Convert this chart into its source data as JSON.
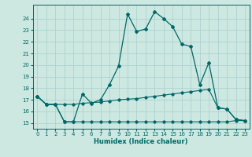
{
  "xlabel": "Humidex (Indice chaleur)",
  "background_color": "#cce8e0",
  "grid_color": "#aaced0",
  "line_color": "#006868",
  "x_values": [
    0,
    1,
    2,
    3,
    4,
    5,
    6,
    7,
    8,
    9,
    10,
    11,
    12,
    13,
    14,
    15,
    16,
    17,
    18,
    19,
    20,
    21,
    22,
    23
  ],
  "line_main_y": [
    17.3,
    16.6,
    16.6,
    15.1,
    15.1,
    17.5,
    16.7,
    17.0,
    18.3,
    19.9,
    24.4,
    22.9,
    23.1,
    24.6,
    24.0,
    23.3,
    21.8,
    21.6,
    18.3,
    20.2,
    16.3,
    16.2,
    15.3,
    15.2
  ],
  "line_mid_y": [
    17.3,
    16.6,
    16.6,
    16.6,
    16.6,
    16.7,
    16.75,
    16.8,
    16.9,
    17.0,
    17.05,
    17.1,
    17.2,
    17.3,
    17.4,
    17.5,
    17.6,
    17.7,
    17.8,
    17.9,
    16.3,
    16.2,
    15.3,
    15.2
  ],
  "line_bot_y": [
    17.3,
    16.6,
    16.6,
    15.1,
    15.1,
    15.1,
    15.1,
    15.1,
    15.1,
    15.1,
    15.1,
    15.1,
    15.1,
    15.1,
    15.1,
    15.1,
    15.1,
    15.1,
    15.1,
    15.1,
    15.1,
    15.1,
    15.2,
    15.2
  ],
  "ylim": [
    14.5,
    25.2
  ],
  "xlim": [
    -0.5,
    23.5
  ],
  "yticks": [
    15,
    16,
    17,
    18,
    19,
    20,
    21,
    22,
    23,
    24
  ],
  "xticks": [
    0,
    1,
    2,
    3,
    4,
    5,
    6,
    7,
    8,
    9,
    10,
    11,
    12,
    13,
    14,
    15,
    16,
    17,
    18,
    19,
    20,
    21,
    22,
    23
  ]
}
